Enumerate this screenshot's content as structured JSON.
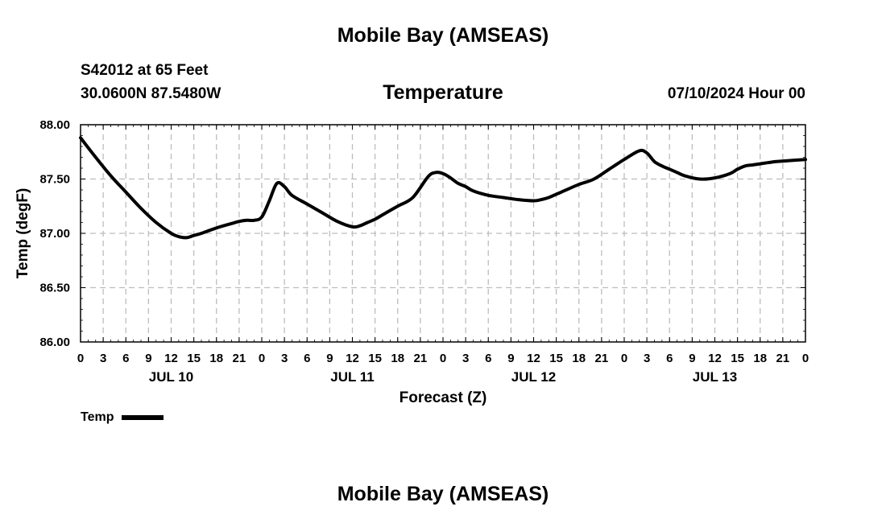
{
  "header": {
    "title": "Mobile Bay (AMSEAS)",
    "station": "S42012 at 65 Feet",
    "coords": "30.0600N  87.5480W",
    "run_time": "07/10/2024 Hour 00",
    "footer_title": "Mobile Bay (AMSEAS)"
  },
  "legend": {
    "label": "Temp"
  },
  "chart_data": {
    "type": "line",
    "title": "Temperature",
    "xlabel": "Forecast (Z)",
    "ylabel": "Temp (degF)",
    "ylim": [
      86.0,
      88.0
    ],
    "yticks": [
      "86.00",
      "86.50",
      "87.00",
      "87.50",
      "88.00"
    ],
    "xlim": [
      0,
      96
    ],
    "xtick_labels": [
      "0",
      "3",
      "6",
      "9",
      "12",
      "15",
      "18",
      "21",
      "0",
      "3",
      "6",
      "9",
      "12",
      "15",
      "18",
      "21",
      "0",
      "3",
      "6",
      "9",
      "12",
      "15",
      "18",
      "21",
      "0",
      "3",
      "6",
      "9",
      "12",
      "15",
      "18",
      "21",
      "0"
    ],
    "day_labels": [
      "JUL 10",
      "JUL 11",
      "JUL 12",
      "JUL 13"
    ],
    "grid": true,
    "legend_position": "bottom-left",
    "series": [
      {
        "name": "Temp",
        "color": "#000000",
        "x": [
          0,
          2,
          4,
          6,
          8,
          10,
          12,
          13,
          14,
          15,
          16,
          18,
          20,
          21,
          22,
          23,
          24,
          25,
          26,
          27,
          28,
          30,
          32,
          34,
          36,
          37,
          38,
          39,
          40,
          42,
          44,
          46,
          47,
          48,
          49,
          50,
          51,
          52,
          54,
          56,
          58,
          60,
          61,
          62,
          63,
          64,
          66,
          68,
          70,
          72,
          74,
          75,
          76,
          77,
          78,
          79,
          80,
          82,
          84,
          86,
          87,
          88,
          89,
          90,
          91,
          92,
          94,
          96
        ],
        "y": [
          87.88,
          87.7,
          87.53,
          87.38,
          87.23,
          87.1,
          87.0,
          86.97,
          86.96,
          86.98,
          87.0,
          87.05,
          87.09,
          87.11,
          87.12,
          87.12,
          87.15,
          87.3,
          87.46,
          87.43,
          87.35,
          87.27,
          87.19,
          87.11,
          87.06,
          87.07,
          87.1,
          87.13,
          87.17,
          87.25,
          87.33,
          87.52,
          87.56,
          87.55,
          87.51,
          87.46,
          87.43,
          87.39,
          87.35,
          87.33,
          87.31,
          87.3,
          87.31,
          87.33,
          87.36,
          87.39,
          87.45,
          87.5,
          87.59,
          87.68,
          87.76,
          87.74,
          87.66,
          87.62,
          87.59,
          87.56,
          87.53,
          87.5,
          87.51,
          87.55,
          87.59,
          87.62,
          87.63,
          87.64,
          87.65,
          87.66,
          87.67,
          87.68
        ]
      }
    ]
  }
}
